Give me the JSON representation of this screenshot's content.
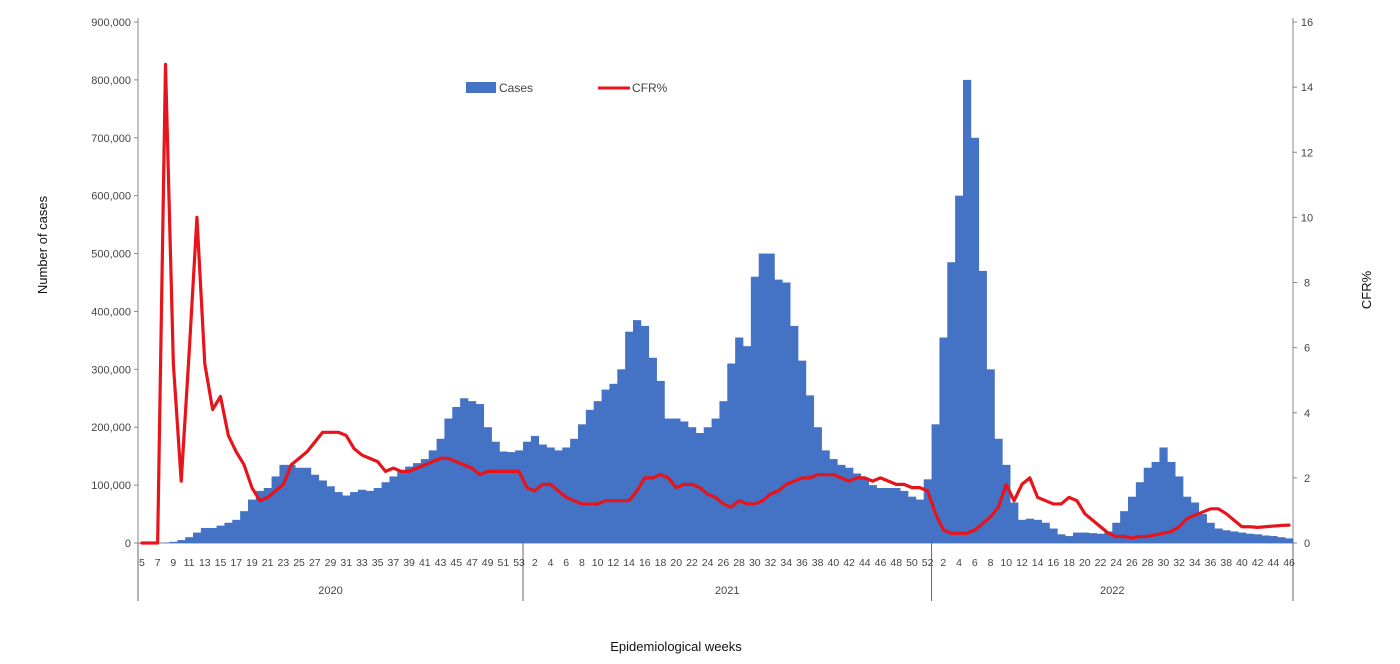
{
  "chart_data": {
    "type": "bar+line",
    "xlabel": "Epidemiological weeks",
    "ylabel_left": "Number of cases",
    "ylabel_right": "CFR%",
    "ylim_left": [
      0,
      900000
    ],
    "ylim_right": [
      0,
      16
    ],
    "left_ticks": [
      "0",
      "100,000",
      "200,000",
      "300,000",
      "400,000",
      "500,000",
      "600,000",
      "700,000",
      "800,000",
      "900,000"
    ],
    "right_ticks": [
      "0",
      "2",
      "4",
      "6",
      "8",
      "10",
      "12",
      "14",
      "16"
    ],
    "legend": {
      "placement": "top-center",
      "items": [
        "Cases",
        "CFR%"
      ]
    },
    "colors": {
      "cases": "#4472C4",
      "cfr": "#E8141B"
    },
    "years": [
      {
        "label": "2020",
        "start_week": 5,
        "end_week": 53
      },
      {
        "label": "2021",
        "start_week": 1,
        "end_week": 52
      },
      {
        "label": "2022",
        "start_week": 1,
        "end_week": 46
      }
    ],
    "series": [
      {
        "name": "Cases",
        "type": "bar",
        "values": [
          0,
          0,
          0,
          500,
          2000,
          5000,
          10000,
          18000,
          26000,
          26000,
          30000,
          35000,
          40000,
          55000,
          75000,
          90000,
          95000,
          115000,
          135000,
          135000,
          130000,
          130000,
          118000,
          108000,
          98000,
          88000,
          82000,
          88000,
          92000,
          90000,
          95000,
          105000,
          115000,
          125000,
          132000,
          138000,
          145000,
          160000,
          180000,
          215000,
          235000,
          250000,
          245000,
          240000,
          200000,
          175000,
          158000,
          157000,
          160000,
          175000,
          185000,
          170000,
          165000,
          160000,
          165000,
          180000,
          205000,
          230000,
          245000,
          265000,
          275000,
          300000,
          365000,
          385000,
          375000,
          320000,
          280000,
          215000,
          215000,
          210000,
          200000,
          190000,
          200000,
          215000,
          245000,
          310000,
          355000,
          340000,
          460000,
          500000,
          500000,
          455000,
          450000,
          375000,
          315000,
          255000,
          200000,
          160000,
          145000,
          135000,
          130000,
          120000,
          110000,
          100000,
          95000,
          95000,
          95000,
          90000,
          80000,
          75000,
          110000,
          205000,
          355000,
          485000,
          600000,
          800000,
          700000,
          470000,
          300000,
          180000,
          135000,
          70000,
          40000,
          42000,
          40000,
          35000,
          25000,
          15000,
          12000,
          18000,
          18000,
          17000,
          16000,
          20000,
          35000,
          55000,
          80000,
          105000,
          130000,
          140000,
          165000,
          140000,
          115000,
          80000,
          70000,
          50000,
          35000,
          25000,
          22000,
          20000,
          18000,
          16000,
          15000,
          13000,
          12000,
          10000,
          8000
        ]
      },
      {
        "name": "CFR%",
        "type": "line",
        "values": [
          0,
          0,
          0,
          14.7,
          5.5,
          1.9,
          5.8,
          10.0,
          5.5,
          4.1,
          4.5,
          3.3,
          2.8,
          2.4,
          1.7,
          1.3,
          1.4,
          1.6,
          1.8,
          2.4,
          2.6,
          2.8,
          3.1,
          3.4,
          3.4,
          3.4,
          3.3,
          2.9,
          2.7,
          2.6,
          2.5,
          2.2,
          2.3,
          2.2,
          2.2,
          2.3,
          2.4,
          2.5,
          2.6,
          2.6,
          2.5,
          2.4,
          2.3,
          2.1,
          2.2,
          2.2,
          2.2,
          2.2,
          2.2,
          1.7,
          1.6,
          1.8,
          1.8,
          1.6,
          1.4,
          1.3,
          1.2,
          1.2,
          1.2,
          1.3,
          1.3,
          1.3,
          1.3,
          1.6,
          2.0,
          2.0,
          2.1,
          2.0,
          1.7,
          1.8,
          1.8,
          1.7,
          1.5,
          1.4,
          1.2,
          1.1,
          1.3,
          1.2,
          1.2,
          1.3,
          1.5,
          1.6,
          1.8,
          1.9,
          2.0,
          2.0,
          2.1,
          2.1,
          2.1,
          2.0,
          1.9,
          2.0,
          2.0,
          1.9,
          2.0,
          1.9,
          1.8,
          1.8,
          1.7,
          1.7,
          1.6,
          0.9,
          0.4,
          0.3,
          0.3,
          0.3,
          0.4,
          0.6,
          0.8,
          1.1,
          1.8,
          1.3,
          1.8,
          2.0,
          1.4,
          1.3,
          1.2,
          1.2,
          1.4,
          1.3,
          0.9,
          0.7,
          0.5,
          0.3,
          0.2,
          0.2,
          0.15,
          0.2,
          0.2,
          0.25,
          0.3,
          0.35,
          0.5,
          0.75,
          0.85,
          0.95,
          1.05,
          1.05,
          0.9,
          0.7,
          0.5,
          0.5,
          0.48,
          0.5,
          0.52,
          0.54,
          0.55
        ]
      }
    ]
  }
}
